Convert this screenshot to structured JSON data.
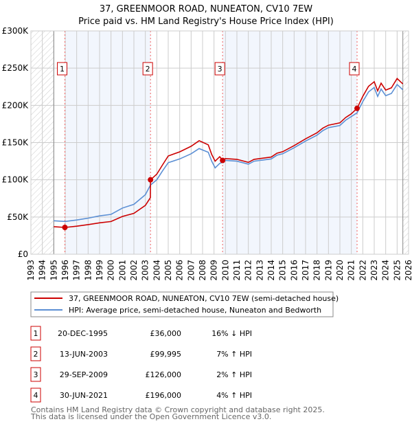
{
  "chart_data": {
    "type": "line",
    "title": "37, GREENMOOR ROAD, NUNEATON, CV10 7EW",
    "subtitle": "Price paid vs. HM Land Registry's House Price Index (HPI)",
    "xlim": [
      1993,
      2026
    ],
    "ylim": [
      0,
      300000
    ],
    "y_ticks": [
      {
        "v": 0,
        "label": "£0"
      },
      {
        "v": 50000,
        "label": "£50K"
      },
      {
        "v": 100000,
        "label": "£100K"
      },
      {
        "v": 150000,
        "label": "£150K"
      },
      {
        "v": 200000,
        "label": "£200K"
      },
      {
        "v": 250000,
        "label": "£250K"
      },
      {
        "v": 300000,
        "label": "£300K"
      }
    ],
    "x_ticks": [
      "1993",
      "1994",
      "1995",
      "1996",
      "1997",
      "1998",
      "1999",
      "2000",
      "2001",
      "2002",
      "2003",
      "2004",
      "2005",
      "2006",
      "2007",
      "2008",
      "2009",
      "2010",
      "2011",
      "2012",
      "2013",
      "2014",
      "2015",
      "2016",
      "2017",
      "2018",
      "2019",
      "2020",
      "2021",
      "2022",
      "2023",
      "2024",
      "2025",
      "2026"
    ],
    "grid": true,
    "no_data_ranges": [
      [
        1993,
        1995
      ],
      [
        2025.5,
        2026
      ]
    ],
    "series": [
      {
        "name": "37, GREENMOOR ROAD, NUNEATON, CV10 7EW (semi-detached house)",
        "color": "#cc0000",
        "x": [
          1995,
          1996,
          1997,
          1998,
          1999,
          2000,
          2001,
          2002,
          2003,
          2003.44,
          2003.45,
          2004,
          2004.5,
          2005,
          2006,
          2007,
          2007.7,
          2008,
          2008.5,
          2008.8,
          2009.1,
          2009.5,
          2009.75,
          2010,
          2011,
          2012,
          2012.5,
          2013,
          2014,
          2014.5,
          2015,
          2016,
          2017,
          2018,
          2018.5,
          2019,
          2020,
          2020.5,
          2021,
          2021.5,
          2022,
          2022.5,
          2023,
          2023.3,
          2023.6,
          2024,
          2024.5,
          2025,
          2025.5
        ],
        "y": [
          37000,
          36000,
          37700,
          39800,
          42200,
          43900,
          50800,
          54900,
          65600,
          76000,
          100000,
          107500,
          120000,
          132000,
          137500,
          145000,
          152500,
          150500,
          147000,
          134000,
          125000,
          131000,
          126000,
          128500,
          127500,
          123400,
          127500,
          128500,
          130500,
          135700,
          137700,
          145900,
          155000,
          163200,
          169300,
          173400,
          176500,
          183600,
          188700,
          196000,
          212000,
          225600,
          231800,
          219400,
          229800,
          220500,
          223600,
          236000,
          228700
        ]
      },
      {
        "name": "HPI: Average price, semi-detached house, Nuneaton and Bedworth",
        "color": "#5b8fd4",
        "x": [
          1995,
          1996,
          1997,
          1998,
          1999,
          2000,
          2001,
          2002,
          2003,
          2003.45,
          2004,
          2004.5,
          2005,
          2006,
          2007,
          2007.7,
          2008,
          2008.5,
          2008.8,
          2009.1,
          2009.5,
          2009.75,
          2010,
          2011,
          2012,
          2012.5,
          2013,
          2014,
          2014.5,
          2015,
          2016,
          2017,
          2018,
          2018.5,
          2019,
          2020,
          2020.5,
          2021,
          2021.5,
          2022,
          2022.5,
          2023,
          2023.3,
          2023.6,
          2024,
          2024.5,
          2025,
          2025.5
        ],
        "y": [
          45000,
          44000,
          46000,
          48500,
          51500,
          53500,
          62000,
          67000,
          80000,
          93000,
          100000,
          112000,
          123000,
          128000,
          135000,
          142000,
          140000,
          137000,
          125000,
          116000,
          122000,
          123500,
          126000,
          125000,
          121000,
          125000,
          126000,
          128000,
          133000,
          135000,
          143000,
          152000,
          160000,
          166000,
          170000,
          173000,
          180000,
          185000,
          190000,
          205000,
          218000,
          224000,
          212000,
          222000,
          213000,
          216000,
          228000,
          221000
        ]
      }
    ],
    "sales": [
      {
        "n": "1",
        "x": 1995.97,
        "y": 36000,
        "date": "20-DEC-1995",
        "price": "£36,000",
        "hpi": "16% ↓ HPI"
      },
      {
        "n": "2",
        "x": 2003.45,
        "y": 99995,
        "date": "13-JUN-2003",
        "price": "£99,995",
        "hpi": "7% ↑ HPI"
      },
      {
        "n": "3",
        "x": 2009.75,
        "y": 126000,
        "date": "29-SEP-2009",
        "price": "£126,000",
        "hpi": "2% ↑ HPI"
      },
      {
        "n": "4",
        "x": 2021.5,
        "y": 196000,
        "date": "30-JUN-2021",
        "price": "£196,000",
        "hpi": "4% ↑ HPI"
      }
    ]
  },
  "footer": {
    "line1": "Contains HM Land Registry data © Crown copyright and database right 2025.",
    "line2": "This data is licensed under the Open Government Licence v3.0."
  }
}
